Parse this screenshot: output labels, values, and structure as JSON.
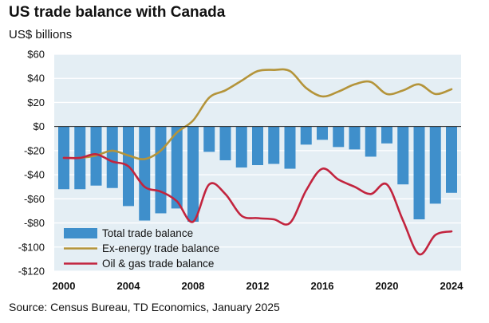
{
  "title": "US trade balance with Canada",
  "subtitle": "US$ billions",
  "source": "Source: Census Bureau, TD Economics, January 2025",
  "colors": {
    "plot_bg": "#e4eef4",
    "grid": "#ffffff",
    "bar": "#3f8fcb",
    "ex_energy": "#b4943a",
    "oil_gas": "#c2243e"
  },
  "chart_data": {
    "type": "bar+line",
    "title": "US trade balance with Canada",
    "ylabel": "US$ billions",
    "xlabel": "",
    "ylim": [
      -120,
      60
    ],
    "yticks": [
      60,
      40,
      20,
      0,
      -20,
      -40,
      -60,
      -80,
      -100,
      -120
    ],
    "ytick_labels": [
      "$60",
      "$40",
      "$20",
      "$0",
      "-$20",
      "-$40",
      "-$60",
      "-$80",
      "-$100",
      "-$120"
    ],
    "xticks": [
      2000,
      2004,
      2008,
      2012,
      2016,
      2020,
      2024
    ],
    "xtick_labels": [
      "2000",
      "2004",
      "2008",
      "2012",
      "2016",
      "2020",
      "2024"
    ],
    "xlim": [
      2000,
      2024
    ],
    "grid": true,
    "legend_position": "bottom-left",
    "series": [
      {
        "name": "Total trade balance",
        "kind": "bar",
        "x": [
          2000,
          2001,
          2002,
          2003,
          2004,
          2005,
          2006,
          2007,
          2008,
          2009,
          2010,
          2011,
          2012,
          2013,
          2014,
          2015,
          2016,
          2017,
          2018,
          2019,
          2020,
          2021,
          2022,
          2023,
          2024
        ],
        "values": [
          -52,
          -52,
          -49,
          -51,
          -66,
          -78,
          -72,
          -68,
          -79,
          -21,
          -28,
          -34,
          -32,
          -31,
          -35,
          -15,
          -11,
          -17,
          -19,
          -25,
          -14,
          -48,
          -77,
          -64,
          -55
        ]
      },
      {
        "name": "Ex-energy trade balance",
        "kind": "line",
        "x": [
          2000,
          2001,
          2002,
          2003,
          2004,
          2005,
          2006,
          2007,
          2008,
          2009,
          2010,
          2011,
          2012,
          2013,
          2014,
          2015,
          2016,
          2017,
          2018,
          2019,
          2020,
          2021,
          2022,
          2023,
          2024
        ],
        "values": [
          -26,
          -26,
          -24,
          -20,
          -24,
          -27,
          -20,
          -5,
          5,
          24,
          30,
          38,
          46,
          47,
          46,
          32,
          25,
          29,
          35,
          37,
          27,
          30,
          35,
          27,
          31
        ]
      },
      {
        "name": "Oil & gas trade balance",
        "kind": "line",
        "x": [
          2000,
          2001,
          2002,
          2003,
          2004,
          2005,
          2006,
          2007,
          2008,
          2009,
          2010,
          2011,
          2012,
          2013,
          2014,
          2015,
          2016,
          2017,
          2018,
          2019,
          2020,
          2021,
          2022,
          2023,
          2024
        ],
        "values": [
          -26,
          -26,
          -23,
          -29,
          -33,
          -50,
          -54,
          -62,
          -79,
          -48,
          -56,
          -74,
          -76,
          -77,
          -80,
          -53,
          -35,
          -44,
          -50,
          -56,
          -48,
          -78,
          -106,
          -90,
          -87
        ]
      }
    ]
  }
}
